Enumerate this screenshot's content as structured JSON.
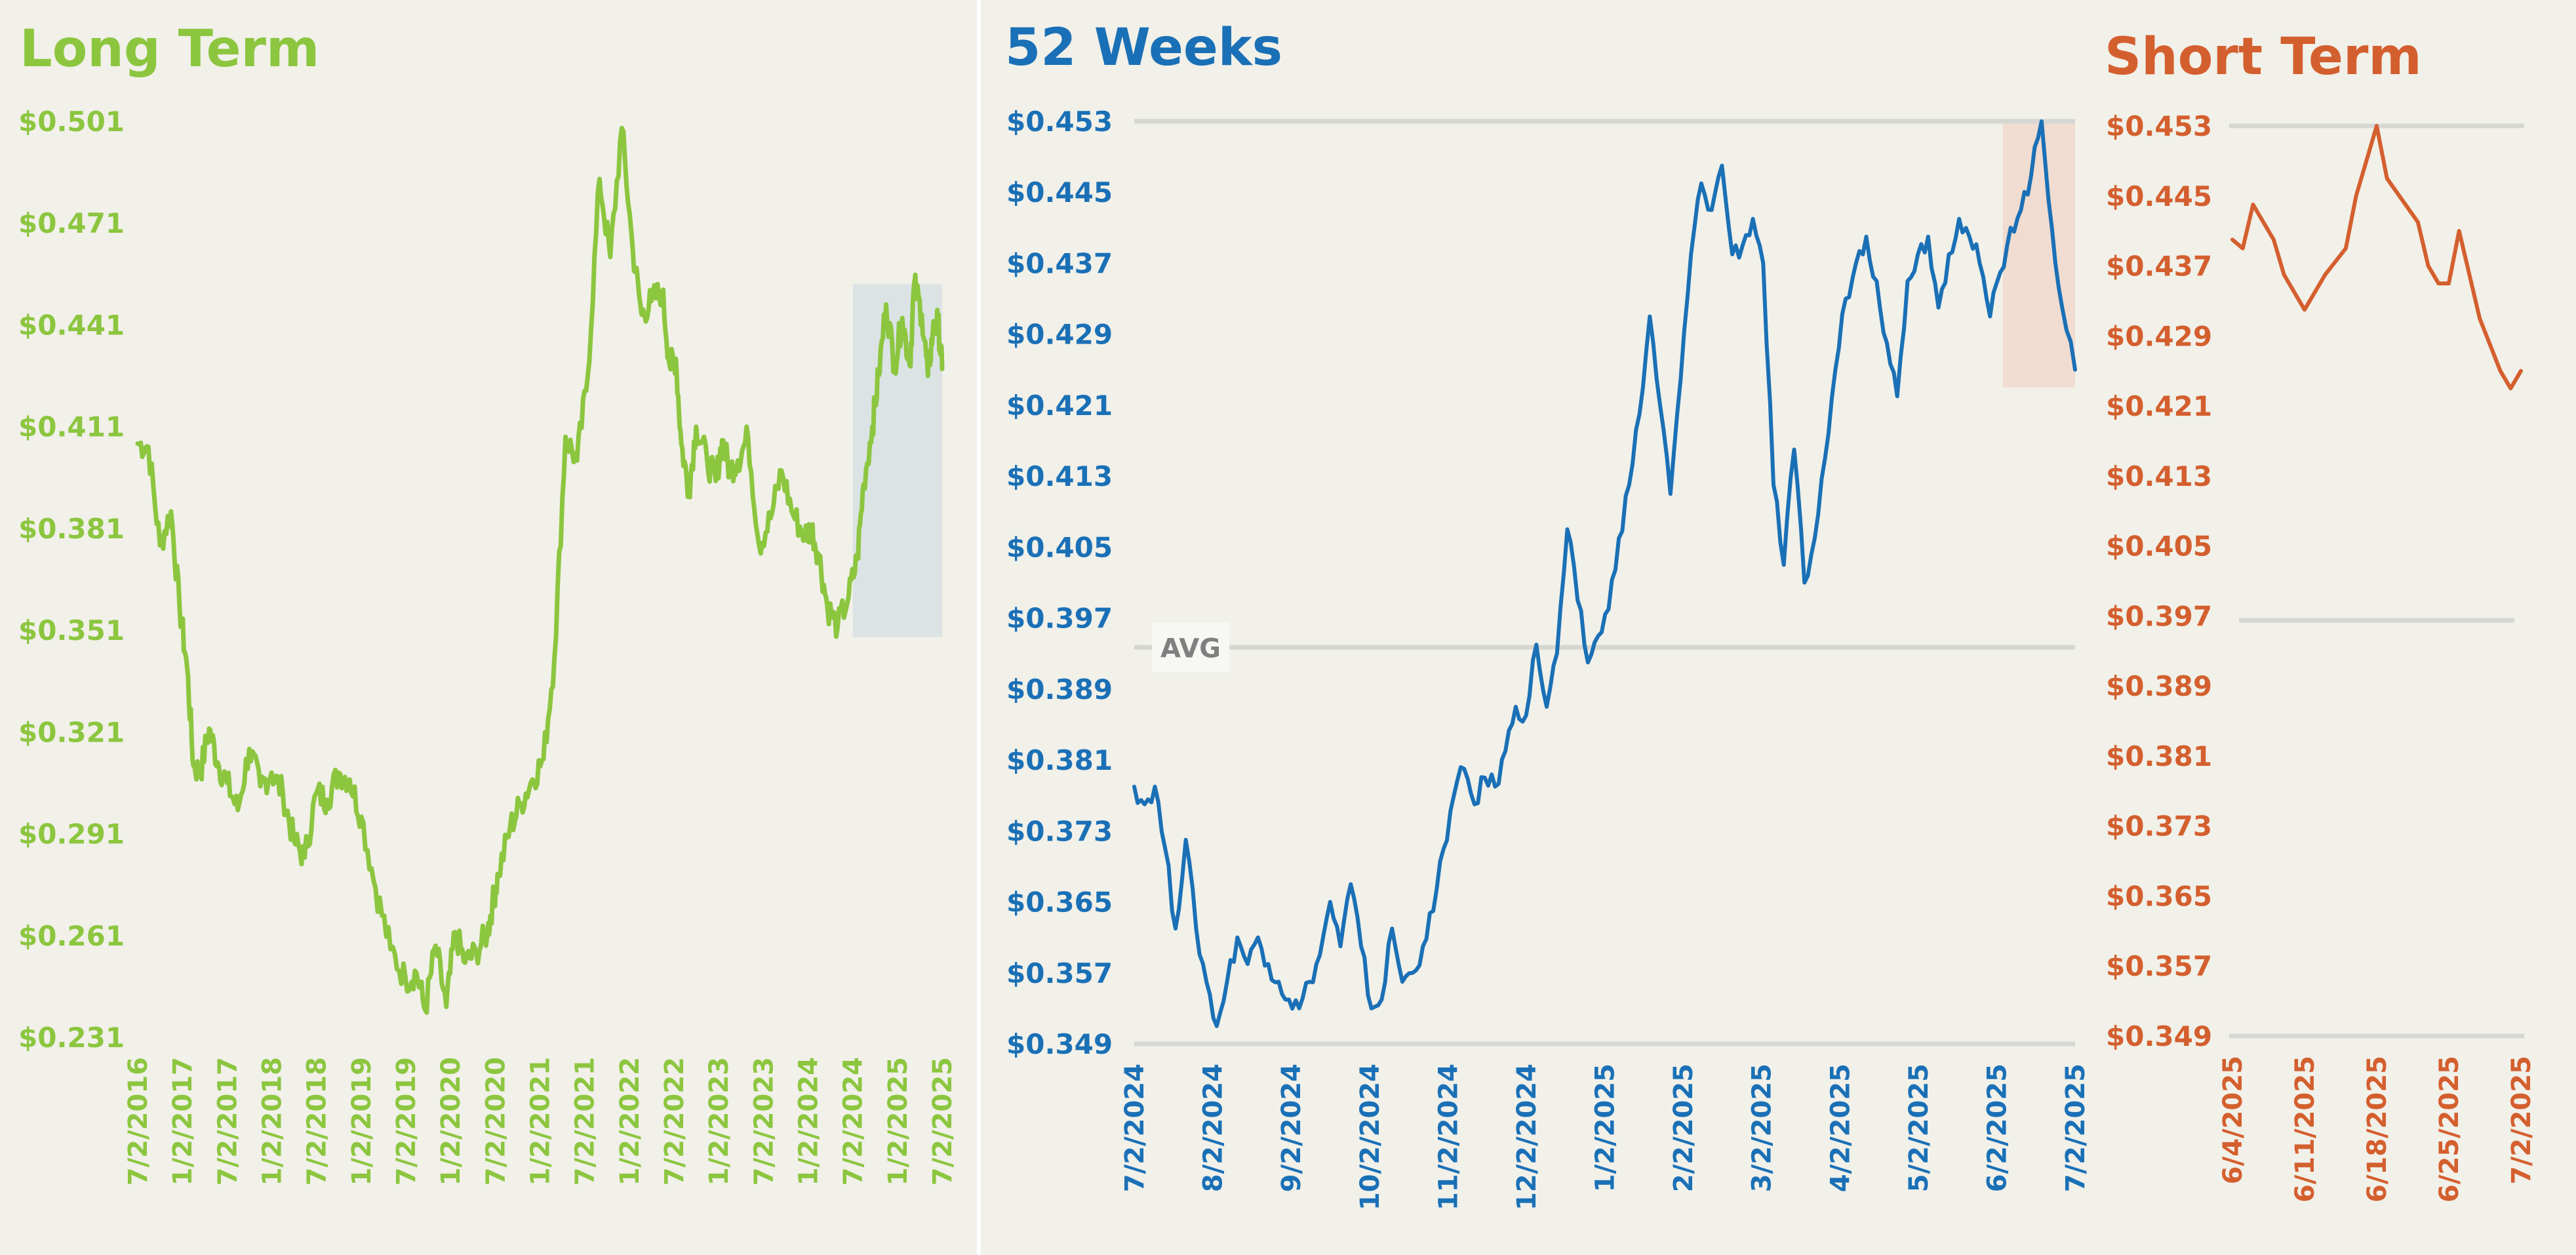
{
  "chart_data": [
    {
      "type": "line",
      "title": "Long Term",
      "color": "#8cc63f",
      "ylim": [
        0.231,
        0.501
      ],
      "yticks": [
        "$0.231",
        "$0.261",
        "$0.291",
        "$0.321",
        "$0.351",
        "$0.381",
        "$0.411",
        "$0.441",
        "$0.471",
        "$0.501"
      ],
      "xlim": [
        "2016-07-02",
        "2025-07-02"
      ],
      "xticks": [
        "7/2/2016",
        "1/2/2017",
        "7/2/2017",
        "1/2/2018",
        "7/2/2018",
        "1/2/2019",
        "7/2/2019",
        "1/2/2020",
        "7/2/2020",
        "1/2/2021",
        "7/2/2021",
        "1/2/2022",
        "7/2/2022",
        "1/2/2023",
        "7/2/2023",
        "1/2/2024",
        "7/2/2024",
        "1/2/2025",
        "7/2/2025"
      ],
      "highlight": {
        "x": [
          "2024-07-02",
          "2025-07-02"
        ],
        "y": [
          0.349,
          0.453
        ],
        "color": "#dbe3e4"
      },
      "series": [
        {
          "x": [
            "2016-07-02",
            "2016-08-15",
            "2016-10-01",
            "2016-11-15",
            "2016-12-20",
            "2017-01-20",
            "2017-02-15",
            "2017-03-15",
            "2017-04-20",
            "2017-05-25",
            "2017-07-02",
            "2017-08-15",
            "2017-10-01",
            "2017-11-15",
            "2017-12-31",
            "2018-02-15",
            "2018-04-01",
            "2018-05-15",
            "2018-07-02",
            "2018-08-15",
            "2018-10-01",
            "2018-11-15",
            "2019-01-02",
            "2019-03-01",
            "2019-05-01",
            "2019-07-02",
            "2019-08-15",
            "2019-09-20",
            "2019-11-01",
            "2019-12-15",
            "2020-01-20",
            "2020-03-01",
            "2020-04-15",
            "2020-06-01",
            "2020-06-20",
            "2020-07-15",
            "2020-09-01",
            "2020-10-15",
            "2020-12-01",
            "2021-01-15",
            "2021-03-01",
            "2021-04-15",
            "2021-06-01",
            "2021-07-15",
            "2021-09-01",
            "2021-10-15",
            "2021-12-01",
            "2022-01-15",
            "2022-02-20",
            "2022-04-01",
            "2022-05-15",
            "2022-06-15",
            "2022-07-10",
            "2022-08-01",
            "2022-09-01",
            "2022-10-01",
            "2022-11-15",
            "2022-12-20",
            "2023-01-15",
            "2023-02-15",
            "2023-03-20",
            "2023-05-01",
            "2023-06-15",
            "2023-08-01",
            "2023-09-15",
            "2023-11-01",
            "2023-12-20",
            "2024-01-15",
            "2024-02-15",
            "2024-03-20",
            "2024-05-01",
            "2024-06-15",
            "2024-07-20",
            "2024-08-15",
            "2024-09-20",
            "2024-10-15",
            "2024-11-15",
            "2024-12-20",
            "2025-01-20",
            "2025-02-20",
            "2025-03-10",
            "2025-04-10",
            "2025-05-05",
            "2025-05-25",
            "2025-06-15",
            "2025-07-02"
          ],
          "y": [
            0.406,
            0.405,
            0.376,
            0.386,
            0.358,
            0.34,
            0.311,
            0.309,
            0.322,
            0.312,
            0.306,
            0.298,
            0.316,
            0.305,
            0.309,
            0.303,
            0.289,
            0.284,
            0.303,
            0.301,
            0.309,
            0.307,
            0.296,
            0.275,
            0.257,
            0.248,
            0.25,
            0.239,
            0.258,
            0.24,
            0.262,
            0.253,
            0.256,
            0.262,
            0.27,
            0.279,
            0.293,
            0.3,
            0.307,
            0.313,
            0.343,
            0.408,
            0.401,
            0.426,
            0.484,
            0.461,
            0.499,
            0.463,
            0.444,
            0.448,
            0.451,
            0.429,
            0.431,
            0.406,
            0.392,
            0.411,
            0.401,
            0.395,
            0.407,
            0.398,
            0.401,
            0.408,
            0.376,
            0.384,
            0.398,
            0.385,
            0.379,
            0.381,
            0.373,
            0.358,
            0.352,
            0.361,
            0.372,
            0.394,
            0.411,
            0.426,
            0.447,
            0.429,
            0.443,
            0.429,
            0.453,
            0.444,
            0.426,
            0.439,
            0.442,
            0.428
          ]
        }
      ]
    },
    {
      "type": "line",
      "title": "52 Weeks",
      "color": "#1a70b6",
      "ylim": [
        0.349,
        0.453
      ],
      "yticks": [
        "$0.349",
        "$0.357",
        "$0.365",
        "$0.373",
        "$0.381",
        "$0.389",
        "$0.397",
        "$0.405",
        "$0.413",
        "$0.421",
        "$0.429",
        "$0.437",
        "$0.445",
        "$0.453"
      ],
      "xlim": [
        "2024-07-02",
        "2025-07-02"
      ],
      "xticks": [
        "7/2/2024",
        "8/2/2024",
        "9/2/2024",
        "10/2/2024",
        "11/2/2024",
        "12/2/2024",
        "1/2/2025",
        "2/2/2025",
        "3/2/2025",
        "4/2/2025",
        "5/2/2025",
        "6/2/2025",
        "7/2/2025"
      ],
      "average": {
        "label": "AVG",
        "y": 0.3937
      },
      "highlight": {
        "x": [
          "2025-06-04",
          "2025-07-02"
        ],
        "y": [
          0.423,
          0.453
        ],
        "color": "#f0dcd0"
      },
      "series": [
        {
          "x": [
            "2024-07-02",
            "2024-07-06",
            "2024-07-10",
            "2024-07-14",
            "2024-07-18",
            "2024-07-22",
            "2024-07-26",
            "2024-07-30",
            "2024-08-03",
            "2024-08-07",
            "2024-08-11",
            "2024-08-15",
            "2024-08-19",
            "2024-08-23",
            "2024-08-27",
            "2024-08-31",
            "2024-09-04",
            "2024-09-08",
            "2024-09-12",
            "2024-09-16",
            "2024-09-20",
            "2024-09-24",
            "2024-09-28",
            "2024-10-02",
            "2024-10-06",
            "2024-10-10",
            "2024-10-14",
            "2024-10-18",
            "2024-10-22",
            "2024-10-26",
            "2024-10-30",
            "2024-11-03",
            "2024-11-07",
            "2024-11-11",
            "2024-11-15",
            "2024-11-19",
            "2024-11-23",
            "2024-11-27",
            "2024-12-01",
            "2024-12-05",
            "2024-12-09",
            "2024-12-13",
            "2024-12-17",
            "2024-12-21",
            "2024-12-25",
            "2024-12-29",
            "2025-01-02",
            "2025-01-06",
            "2025-01-10",
            "2025-01-14",
            "2025-01-18",
            "2025-01-22",
            "2025-01-26",
            "2025-01-30",
            "2025-02-03",
            "2025-02-07",
            "2025-02-11",
            "2025-02-15",
            "2025-02-19",
            "2025-02-23",
            "2025-02-27",
            "2025-03-03",
            "2025-03-07",
            "2025-03-11",
            "2025-03-15",
            "2025-03-19",
            "2025-03-23",
            "2025-03-27",
            "2025-03-31",
            "2025-04-04",
            "2025-04-08",
            "2025-04-12",
            "2025-04-16",
            "2025-04-20",
            "2025-04-24",
            "2025-04-28",
            "2025-05-02",
            "2025-05-06",
            "2025-05-10",
            "2025-05-14",
            "2025-05-18",
            "2025-05-22",
            "2025-05-26",
            "2025-05-30",
            "2025-06-03",
            "2025-06-07",
            "2025-06-11",
            "2025-06-15",
            "2025-06-19",
            "2025-06-23",
            "2025-06-27",
            "2025-07-02"
          ],
          "y": [
            0.378,
            0.376,
            0.378,
            0.371,
            0.362,
            0.372,
            0.362,
            0.356,
            0.351,
            0.356,
            0.361,
            0.358,
            0.361,
            0.358,
            0.356,
            0.354,
            0.353,
            0.356,
            0.359,
            0.365,
            0.36,
            0.367,
            0.36,
            0.353,
            0.354,
            0.362,
            0.356,
            0.357,
            0.36,
            0.364,
            0.371,
            0.377,
            0.38,
            0.376,
            0.379,
            0.378,
            0.382,
            0.387,
            0.386,
            0.394,
            0.387,
            0.393,
            0.407,
            0.399,
            0.392,
            0.395,
            0.398,
            0.406,
            0.412,
            0.42,
            0.431,
            0.421,
            0.411,
            0.424,
            0.438,
            0.446,
            0.443,
            0.448,
            0.438,
            0.439,
            0.442,
            0.437,
            0.412,
            0.403,
            0.416,
            0.401,
            0.406,
            0.415,
            0.425,
            0.433,
            0.437,
            0.44,
            0.435,
            0.428,
            0.422,
            0.435,
            0.438,
            0.44,
            0.432,
            0.438,
            0.442,
            0.44,
            0.437,
            0.431,
            0.436,
            0.441,
            0.443,
            0.447,
            0.453,
            0.441,
            0.432,
            0.425
          ]
        }
      ]
    },
    {
      "type": "line",
      "title": "Short Term",
      "color": "#d45f2e",
      "ylim": [
        0.349,
        0.453
      ],
      "yticks": [
        "$0.349",
        "$0.357",
        "$0.365",
        "$0.373",
        "$0.381",
        "$0.389",
        "$0.397",
        "$0.405",
        "$0.413",
        "$0.421",
        "$0.429",
        "$0.437",
        "$0.445",
        "$0.453"
      ],
      "xlim": [
        "2025-06-04",
        "2025-07-02"
      ],
      "xticks": [
        "6/4/2025",
        "6/11/2025",
        "6/18/2025",
        "6/25/2025",
        "7/2/2025"
      ],
      "series": [
        {
          "x": [
            "2025-06-04",
            "2025-06-05",
            "2025-06-06",
            "2025-06-08",
            "2025-06-09",
            "2025-06-10",
            "2025-06-11",
            "2025-06-13",
            "2025-06-15",
            "2025-06-16",
            "2025-06-17",
            "2025-06-18",
            "2025-06-19",
            "2025-06-22",
            "2025-06-23",
            "2025-06-24",
            "2025-06-25",
            "2025-06-26",
            "2025-06-28",
            "2025-06-30",
            "2025-07-01",
            "2025-07-02"
          ],
          "y": [
            0.44,
            0.439,
            0.444,
            0.44,
            0.436,
            0.434,
            0.432,
            0.436,
            0.439,
            0.445,
            0.449,
            0.453,
            0.447,
            0.442,
            0.437,
            0.435,
            0.435,
            0.441,
            0.431,
            0.425,
            0.423,
            0.425
          ]
        }
      ]
    }
  ]
}
